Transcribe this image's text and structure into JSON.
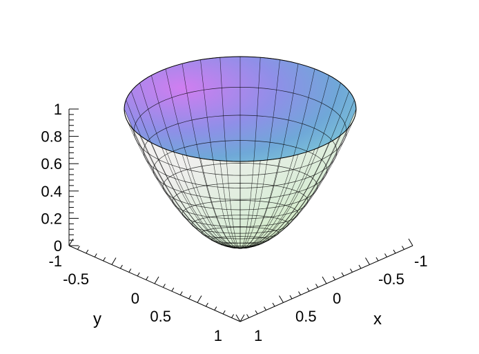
{
  "chart_data": {
    "type": "surface3d",
    "title": "",
    "surface": {
      "x_range": [
        -1,
        1
      ],
      "y_range": [
        -1,
        1
      ],
      "z_range": [
        0,
        1
      ],
      "z_formula": "x^2 + y^2",
      "domain": "unit disk",
      "mesh": "polar"
    },
    "axes": {
      "z": {
        "label": "",
        "ticks": [
          "0",
          "0.2",
          "0.4",
          "0.6",
          "0.8",
          "1"
        ]
      },
      "y": {
        "label": "y",
        "ticks": [
          "-1",
          "-0.5",
          "0",
          "0.5",
          "1"
        ]
      },
      "x": {
        "label": "x",
        "ticks": [
          "1",
          "0.5",
          "0",
          "-0.5",
          "-1"
        ]
      }
    },
    "colors": {
      "background": "#ffffff",
      "axis": "#000000",
      "mesh": "#000000"
    },
    "grid": false,
    "legend": "none"
  }
}
